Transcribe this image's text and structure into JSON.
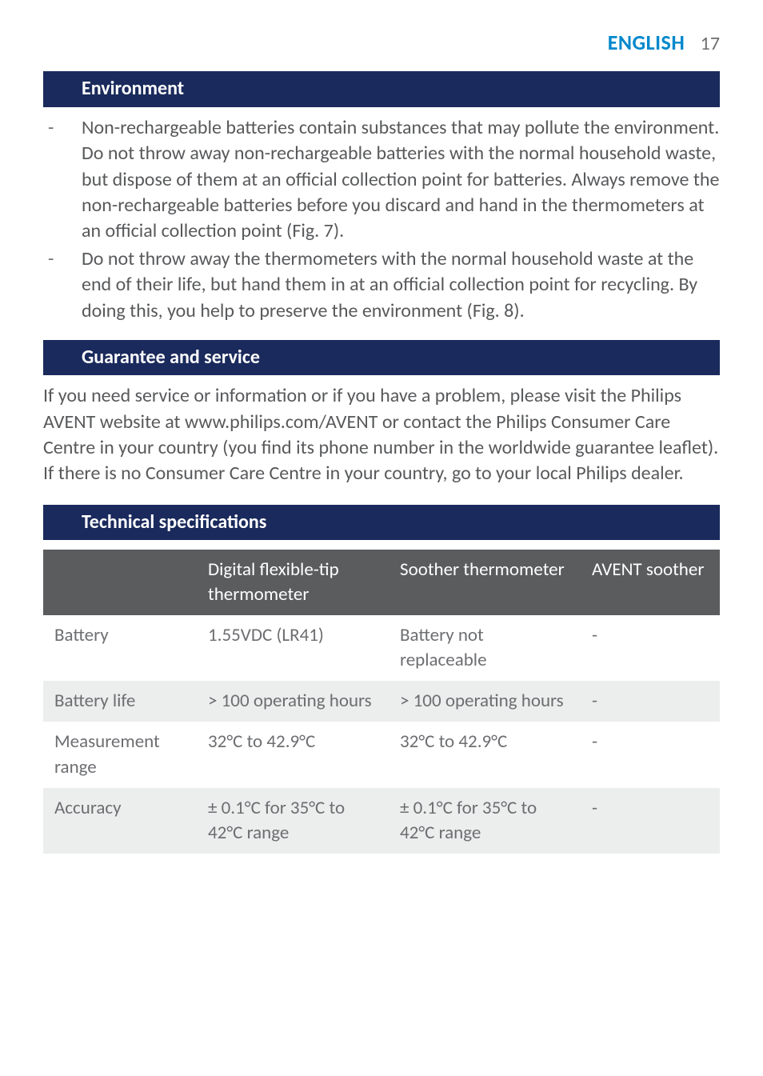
{
  "header": {
    "language": "ENGLISH",
    "page_number": "17",
    "lang_color": "#0088cc",
    "num_color": "#6d6e71"
  },
  "section_bar_style": {
    "background": "#1a2a5c",
    "text_color": "#ffffff",
    "font_weight": 700
  },
  "body_text_color": "#58595b",
  "sections": {
    "environment": {
      "title": "Environment",
      "bullets": [
        "Non-rechargeable batteries contain substances that may pollute the environment. Do not throw away non-rechargeable batteries with the normal household waste, but dispose of them at an official collection point for batteries. Always remove the non-rechargeable batteries before you discard and hand in the thermometers at an official collection point (Fig. 7).",
        "Do not throw away the thermometers with the normal household waste at the end of their life, but hand them in at an official collection point for recycling. By doing this, you help to preserve the environment (Fig. 8)."
      ]
    },
    "guarantee": {
      "title": "Guarantee and service",
      "body": "If you need service or information or if you have a problem, please visit the Philips AVENT website at www.philips.com/AVENT or contact the Philips Consumer Care Centre in your country (you find its phone number in the worldwide guarantee leaflet). If there is no Consumer Care Centre in your country, go to your local Philips dealer."
    },
    "techspec": {
      "title": "Technical specifications",
      "table": {
        "header_bg": "#5b5c5e",
        "header_text_color": "#ffffff",
        "row_alt_bg": "#eceded",
        "row_bg": "#ffffff",
        "columns": [
          "",
          "Digital flexible-tip thermometer",
          "Soother thermometer",
          "AVENT soother"
        ],
        "rows": [
          [
            "Battery",
            "1.55VDC (LR41)",
            "Battery not replaceable",
            "-"
          ],
          [
            "Battery life",
            "> 100 operating hours",
            "> 100 operating hours",
            "-"
          ],
          [
            "Measurement range",
            "32°C to 42.9°C",
            "32°C to 42.9°C",
            "-"
          ],
          [
            "Accuracy",
            "± 0.1°C for 35°C to 42°C range",
            "± 0.1°C for 35°C to 42°C range",
            "-"
          ]
        ]
      }
    }
  }
}
